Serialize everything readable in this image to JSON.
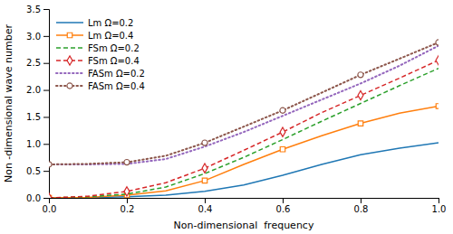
{
  "chart_data": {
    "type": "line",
    "xlabel": "Non-dimensional  frequency",
    "ylabel": "Non -dimensional wave number",
    "x": [
      0.0,
      0.1,
      0.2,
      0.3,
      0.4,
      0.5,
      0.6,
      0.7,
      0.8,
      0.9,
      1.0
    ],
    "series": [
      {
        "name": "Lm Ω=0.2",
        "line_style": "solid",
        "values": [
          0.0,
          0.005,
          0.02,
          0.05,
          0.12,
          0.24,
          0.42,
          0.62,
          0.8,
          0.92,
          1.02
        ]
      },
      {
        "name": "Lm Ω=0.4",
        "line_style": "solid",
        "marker": "square",
        "values": [
          0.0,
          0.01,
          0.05,
          0.13,
          0.32,
          0.62,
          0.9,
          1.15,
          1.38,
          1.57,
          1.7
        ]
      },
      {
        "name": "FSm Ω=0.2",
        "line_style": "dashed",
        "values": [
          0.0,
          0.02,
          0.07,
          0.2,
          0.45,
          0.75,
          1.08,
          1.42,
          1.75,
          2.08,
          2.4
        ]
      },
      {
        "name": "FSm Ω=0.4",
        "line_style": "dashed",
        "marker": "diamond",
        "values": [
          0.0,
          0.03,
          0.12,
          0.28,
          0.55,
          0.88,
          1.22,
          1.58,
          1.9,
          2.22,
          2.55
        ]
      },
      {
        "name": "FASm Ω=0.2",
        "line_style": "dotted",
        "values": [
          0.62,
          0.62,
          0.63,
          0.72,
          0.95,
          1.22,
          1.52,
          1.82,
          2.12,
          2.45,
          2.82
        ]
      },
      {
        "name": "FASm Ω=0.4",
        "line_style": "dotted",
        "marker": "circle",
        "values": [
          0.62,
          0.63,
          0.66,
          0.78,
          1.02,
          1.32,
          1.62,
          1.95,
          2.28,
          2.58,
          2.88
        ]
      }
    ],
    "xlim": [
      0,
      1
    ],
    "ylim": [
      0,
      3.5
    ],
    "xticks": [
      {
        "value": 0,
        "label": "0.0"
      },
      0.2,
      0.4,
      0.6,
      0.8,
      {
        "value": 1,
        "label": "1.0"
      }
    ],
    "yticks": [
      {
        "value": 0,
        "label": "0.0"
      },
      0.5,
      {
        "value": 1,
        "label": "1.0"
      },
      1.5,
      {
        "value": 2,
        "label": "2.0"
      },
      2.5,
      {
        "value": 3,
        "label": "3.0"
      },
      3.5
    ],
    "grid": false,
    "legend": "upper left"
  }
}
